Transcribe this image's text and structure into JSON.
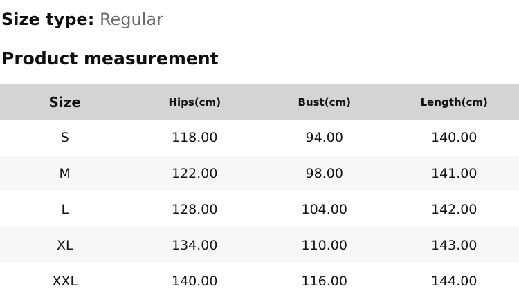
{
  "size_type": {
    "label": "Size type:",
    "value": "Regular"
  },
  "section_title": "Product measurement",
  "table": {
    "columns": [
      {
        "label": "Size"
      },
      {
        "label": "Hips(cm)"
      },
      {
        "label": "Bust(cm)"
      },
      {
        "label": "Length(cm)"
      }
    ],
    "rows": [
      [
        "S",
        "118.00",
        "94.00",
        "140.00"
      ],
      [
        "M",
        "122.00",
        "98.00",
        "141.00"
      ],
      [
        "L",
        "128.00",
        "104.00",
        "142.00"
      ],
      [
        "XL",
        "134.00",
        "110.00",
        "143.00"
      ],
      [
        "XXL",
        "140.00",
        "116.00",
        "144.00"
      ]
    ]
  },
  "colors": {
    "header_bg": "#d4d4d4",
    "alt_row_bg": "#f7f7f7",
    "text": "#111111",
    "muted_text": "#6b6b6b"
  }
}
